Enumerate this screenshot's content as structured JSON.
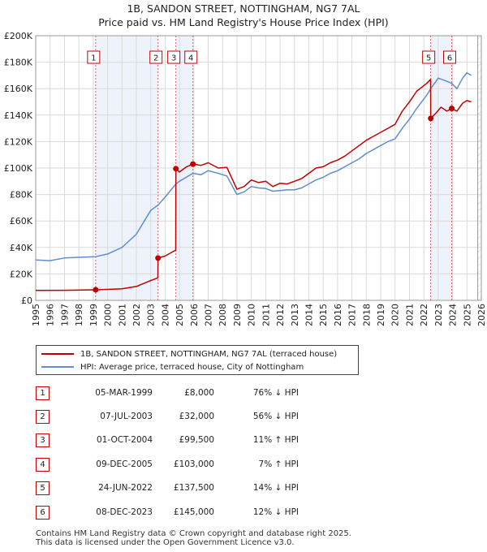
{
  "title": {
    "line1": "1B, SANDON STREET, NOTTINGHAM, NG7 7AL",
    "line2": "Price paid vs. HM Land Registry's House Price Index (HPI)"
  },
  "colors": {
    "price": "#c00000",
    "hpi": "#5b8fd1",
    "shade": "#eef2fb",
    "grid": "#d9d9d9"
  },
  "chart_data": {
    "type": "line",
    "title": "Price paid vs. HM Land Registry's House Price Index (HPI)",
    "xlim": [
      1995,
      2026
    ],
    "ylim": [
      0,
      200000
    ],
    "y_ticks": [
      0,
      20000,
      40000,
      60000,
      80000,
      100000,
      120000,
      140000,
      160000,
      180000,
      200000
    ],
    "y_tick_labels": [
      "£0",
      "£20K",
      "£40K",
      "£60K",
      "£80K",
      "£100K",
      "£120K",
      "£140K",
      "£160K",
      "£180K",
      "£200K"
    ],
    "x_ticks": [
      1995,
      1996,
      1997,
      1998,
      1999,
      2000,
      2001,
      2002,
      2003,
      2004,
      2005,
      2006,
      2007,
      2008,
      2009,
      2010,
      2011,
      2012,
      2013,
      2014,
      2015,
      2016,
      2017,
      2018,
      2019,
      2020,
      2021,
      2022,
      2023,
      2024,
      2025,
      2026
    ],
    "x_tick_labels": [
      "1995",
      "1996",
      "1997",
      "1998",
      "1999",
      "2000",
      "2001",
      "2002",
      "2003",
      "2004",
      "2005",
      "2006",
      "2007",
      "2008",
      "2009",
      "2010",
      "2011",
      "2012",
      "2013",
      "2014",
      "2015",
      "2016",
      "2017",
      "2018",
      "2019",
      "2020",
      "2021",
      "2022",
      "2023",
      "2024",
      "2025",
      "2026"
    ],
    "shaded_ranges": [
      [
        1999.17,
        2003.51
      ],
      [
        2004.75,
        2005.94
      ],
      [
        2022.48,
        2023.94
      ]
    ],
    "data_end": 2025.3,
    "series": [
      {
        "name": "1B, SANDON STREET, NOTTINGHAM, NG7 7AL (terraced house)",
        "color": "#c00000",
        "points": [
          [
            1995,
            7500
          ],
          [
            1997,
            7600
          ],
          [
            1999.17,
            8000
          ],
          [
            2000,
            8300
          ],
          [
            2001,
            8800
          ],
          [
            2002,
            10500
          ],
          [
            2003,
            15000
          ],
          [
            2003.5,
            17000
          ],
          [
            2003.51,
            32000
          ],
          [
            2004,
            33500
          ],
          [
            2004.74,
            38000
          ],
          [
            2004.75,
            99500
          ],
          [
            2005,
            97000
          ],
          [
            2005.5,
            101000
          ],
          [
            2005.94,
            103000
          ],
          [
            2006.5,
            102000
          ],
          [
            2007,
            104000
          ],
          [
            2007.7,
            100000
          ],
          [
            2008.3,
            100500
          ],
          [
            2009,
            84000
          ],
          [
            2009.5,
            86000
          ],
          [
            2010,
            91000
          ],
          [
            2010.5,
            89000
          ],
          [
            2011,
            90000
          ],
          [
            2011.5,
            86000
          ],
          [
            2012,
            88500
          ],
          [
            2012.5,
            88000
          ],
          [
            2013,
            90000
          ],
          [
            2013.5,
            92000
          ],
          [
            2014,
            96000
          ],
          [
            2014.5,
            100000
          ],
          [
            2015,
            101000
          ],
          [
            2015.5,
            104000
          ],
          [
            2016,
            106000
          ],
          [
            2016.5,
            109000
          ],
          [
            2017,
            113000
          ],
          [
            2017.5,
            117000
          ],
          [
            2018,
            121000
          ],
          [
            2018.5,
            124000
          ],
          [
            2019,
            127000
          ],
          [
            2019.5,
            130000
          ],
          [
            2020,
            133000
          ],
          [
            2020.5,
            143000
          ],
          [
            2021,
            150000
          ],
          [
            2021.5,
            158000
          ],
          [
            2022.2,
            164000
          ],
          [
            2022.47,
            167000
          ],
          [
            2022.48,
            137500
          ],
          [
            2022.8,
            141000
          ],
          [
            2023.2,
            146000
          ],
          [
            2023.6,
            143000
          ],
          [
            2023.94,
            145000
          ],
          [
            2024.3,
            143000
          ],
          [
            2024.7,
            149000
          ],
          [
            2025.0,
            151000
          ],
          [
            2025.3,
            150000
          ]
        ]
      },
      {
        "name": "HPI: Average price, terraced house, City of Nottingham",
        "color": "#5b8fd1",
        "points": [
          [
            1995,
            30500
          ],
          [
            1996,
            30000
          ],
          [
            1997,
            32000
          ],
          [
            1998,
            32500
          ],
          [
            1999.17,
            33000
          ],
          [
            2000,
            35000
          ],
          [
            2001,
            40000
          ],
          [
            2002,
            50000
          ],
          [
            2003,
            68000
          ],
          [
            2003.51,
            72000
          ],
          [
            2004,
            78000
          ],
          [
            2004.75,
            88000
          ],
          [
            2005,
            90000
          ],
          [
            2005.94,
            96000
          ],
          [
            2006.5,
            95000
          ],
          [
            2007,
            98000
          ],
          [
            2007.7,
            96000
          ],
          [
            2008.3,
            94000
          ],
          [
            2009,
            80000
          ],
          [
            2009.5,
            82000
          ],
          [
            2010,
            86000
          ],
          [
            2010.5,
            85000
          ],
          [
            2011,
            84500
          ],
          [
            2011.5,
            82500
          ],
          [
            2012,
            83000
          ],
          [
            2012.5,
            83500
          ],
          [
            2013,
            83500
          ],
          [
            2013.5,
            85000
          ],
          [
            2014,
            88000
          ],
          [
            2014.5,
            91000
          ],
          [
            2015,
            93000
          ],
          [
            2015.5,
            96000
          ],
          [
            2016,
            98000
          ],
          [
            2016.5,
            101000
          ],
          [
            2017,
            104000
          ],
          [
            2017.5,
            107000
          ],
          [
            2018,
            111000
          ],
          [
            2018.5,
            114000
          ],
          [
            2019,
            117000
          ],
          [
            2019.5,
            120000
          ],
          [
            2020,
            122000
          ],
          [
            2020.5,
            130000
          ],
          [
            2021,
            137000
          ],
          [
            2021.5,
            145000
          ],
          [
            2022.2,
            155000
          ],
          [
            2022.48,
            160000
          ],
          [
            2023,
            168000
          ],
          [
            2023.5,
            166000
          ],
          [
            2023.94,
            164000
          ],
          [
            2024.3,
            160000
          ],
          [
            2024.7,
            168000
          ],
          [
            2025.0,
            172000
          ],
          [
            2025.3,
            170000
          ]
        ]
      }
    ],
    "transactions": [
      {
        "label": "1",
        "x": 1999.17,
        "price": 8000
      },
      {
        "label": "2",
        "x": 2003.51,
        "price": 32000
      },
      {
        "label": "3",
        "x": 2004.75,
        "price": 99500
      },
      {
        "label": "4",
        "x": 2005.94,
        "price": 103000
      },
      {
        "label": "5",
        "x": 2022.48,
        "price": 137500
      },
      {
        "label": "6",
        "x": 2023.94,
        "price": 145000
      }
    ]
  },
  "legend": {
    "price_label": "1B, SANDON STREET, NOTTINGHAM, NG7 7AL (terraced house)",
    "hpi_label": "HPI: Average price, terraced house, City of Nottingham"
  },
  "table": {
    "rows": [
      {
        "num": "1",
        "date": "05-MAR-1999",
        "price": "£8,000",
        "hpi": "76% ↓ HPI"
      },
      {
        "num": "2",
        "date": "07-JUL-2003",
        "price": "£32,000",
        "hpi": "56% ↓ HPI"
      },
      {
        "num": "3",
        "date": "01-OCT-2004",
        "price": "£99,500",
        "hpi": "11% ↑ HPI"
      },
      {
        "num": "4",
        "date": "09-DEC-2005",
        "price": "£103,000",
        "hpi": "7% ↑ HPI"
      },
      {
        "num": "5",
        "date": "24-JUN-2022",
        "price": "£137,500",
        "hpi": "14% ↓ HPI"
      },
      {
        "num": "6",
        "date": "08-DEC-2023",
        "price": "£145,000",
        "hpi": "12% ↓ HPI"
      }
    ]
  },
  "footer": {
    "line1": "Contains HM Land Registry data © Crown copyright and database right 2025.",
    "line2": "This data is licensed under the Open Government Licence v3.0."
  }
}
